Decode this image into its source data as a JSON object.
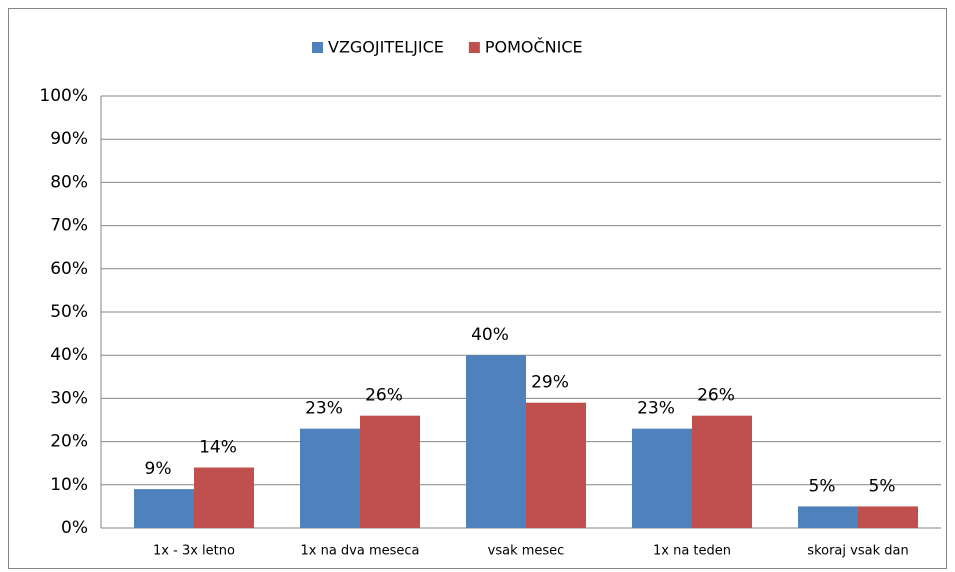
{
  "chart_data": {
    "type": "bar",
    "categories": [
      "1x - 3x letno",
      "1x na dva meseca",
      "vsak mesec",
      "1x na teden",
      "skoraj vsak dan"
    ],
    "series": [
      {
        "name": "VZGOJITELJICE",
        "color": "#4f81bd",
        "values": [
          9,
          23,
          40,
          23,
          5
        ],
        "value_labels": [
          "9%",
          "23%",
          "40%",
          "23%",
          "5%"
        ]
      },
      {
        "name": "POMOČNICE",
        "color": "#c0504d",
        "values": [
          14,
          26,
          29,
          26,
          5
        ],
        "value_labels": [
          "14%",
          "26%",
          "29%",
          "26%",
          "5%"
        ]
      }
    ],
    "ylim": [
      0,
      100
    ],
    "yticks": [
      {
        "value": 0,
        "label": "0%"
      },
      {
        "value": 10,
        "label": "10%"
      },
      {
        "value": 20,
        "label": "20%"
      },
      {
        "value": 30,
        "label": "30%"
      },
      {
        "value": 40,
        "label": "40%"
      },
      {
        "value": 50,
        "label": "50%"
      },
      {
        "value": 60,
        "label": "60%"
      },
      {
        "value": 70,
        "label": "70%"
      },
      {
        "value": 80,
        "label": "80%"
      },
      {
        "value": 90,
        "label": "90%"
      },
      {
        "value": 100,
        "label": "100%"
      }
    ],
    "grid": true,
    "legend": "top"
  }
}
